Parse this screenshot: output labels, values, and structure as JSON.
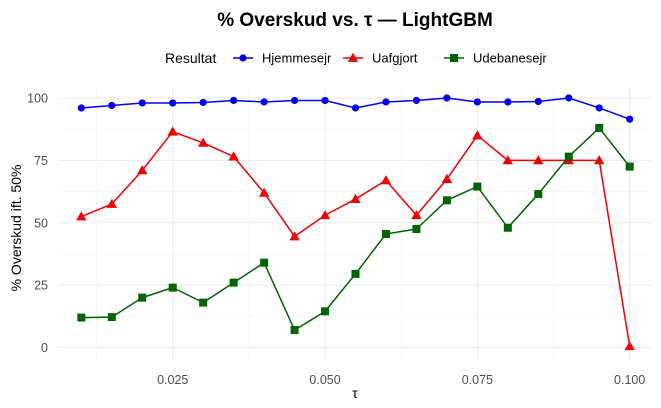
{
  "chart_data": {
    "type": "line",
    "title": "% Overskud vs. τ — LightGBM",
    "xlabel": "τ",
    "ylabel": "% Overskud ift. 50%",
    "xlim": [
      0.0065,
      0.1035
    ],
    "ylim": [
      -5,
      104
    ],
    "xticks": [
      0.025,
      0.05,
      0.075,
      0.1
    ],
    "xtick_labels": [
      "0.025",
      "0.050",
      "0.075",
      "0.100"
    ],
    "yticks": [
      0,
      25,
      50,
      75,
      100
    ],
    "ytick_labels": [
      "0",
      "25",
      "50",
      "75",
      "100"
    ],
    "grid": true,
    "legend": {
      "title": "Resultat",
      "position": "top"
    },
    "x": [
      0.01,
      0.015,
      0.02,
      0.025,
      0.03,
      0.035,
      0.04,
      0.045,
      0.05,
      0.055,
      0.06,
      0.065,
      0.07,
      0.075,
      0.08,
      0.085,
      0.09,
      0.095,
      0.1
    ],
    "series": [
      {
        "name": "Hjemmesejr",
        "color": "#0000ee",
        "marker": "circle",
        "values": [
          96,
          97,
          98,
          98,
          98.2,
          99,
          98.4,
          99,
          99,
          96,
          98.4,
          99,
          100,
          98.4,
          98.4,
          98.6,
          100,
          96,
          91.5
        ]
      },
      {
        "name": "Uafgjort",
        "color": "#ee0000",
        "marker": "triangle",
        "values": [
          52.5,
          57.5,
          71,
          86.5,
          82,
          76.5,
          62,
          44.5,
          53,
          59.5,
          67,
          53,
          67.5,
          85,
          75,
          75,
          75,
          75,
          0.5
        ]
      },
      {
        "name": "Udebanesejr",
        "color": "#006400",
        "marker": "square",
        "values": [
          12,
          12.2,
          20,
          24,
          18,
          26,
          34,
          7,
          14.5,
          29.5,
          45.5,
          47.5,
          59,
          64.5,
          48,
          61.5,
          76.5,
          88,
          72.5
        ]
      }
    ]
  }
}
